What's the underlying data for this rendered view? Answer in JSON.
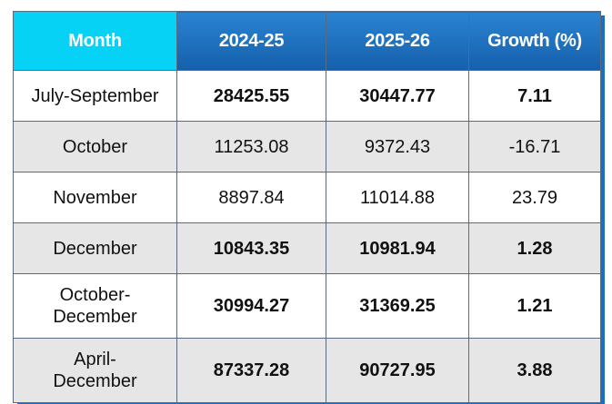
{
  "table": {
    "header": [
      "Month",
      "2024-25",
      "2025-26",
      "Growth (%)"
    ],
    "rows": [
      {
        "cells": [
          "July-September",
          "28425.55",
          "30447.77",
          "7.11"
        ],
        "bold": true
      },
      {
        "cells": [
          "October",
          "11253.08",
          "9372.43",
          "-16.71"
        ],
        "bold": false
      },
      {
        "cells": [
          "November",
          "8897.84",
          "11014.88",
          "23.79"
        ],
        "bold": false
      },
      {
        "cells": [
          "December",
          "10843.35",
          "10981.94",
          "1.28"
        ],
        "bold": true
      },
      {
        "cells": [
          "October-\nDecember",
          "30994.27",
          "31369.25",
          "1.21"
        ],
        "bold": true
      },
      {
        "cells": [
          "April-\nDecember",
          "87337.28",
          "90727.95",
          "3.88"
        ],
        "bold": true
      }
    ]
  }
}
